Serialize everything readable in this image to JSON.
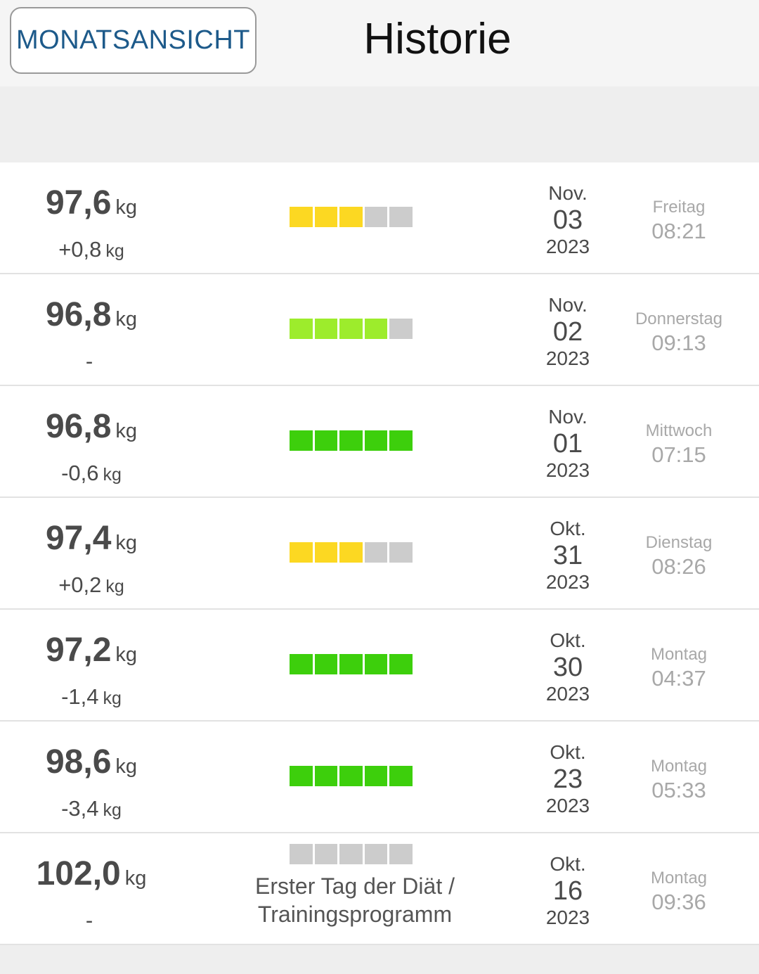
{
  "header": {
    "month_view_label": "MONATSANSICHT",
    "title": "Historie"
  },
  "colors": {
    "yellow": "#fcd822",
    "lime": "#9dec2c",
    "green": "#3dcf0c",
    "empty": "#cccccc",
    "button_text": "#1d5a8a"
  },
  "entries": [
    {
      "weight": "97,6",
      "weight_unit": "kg",
      "delta": "+0,8",
      "delta_unit": "kg",
      "bar_color": "yellow",
      "bar_filled": 3,
      "month": "Nov.",
      "day": "03",
      "year": "2023",
      "weekday": "Freitag",
      "time": "08:21"
    },
    {
      "weight": "96,8",
      "weight_unit": "kg",
      "delta": "-",
      "delta_unit": "",
      "bar_color": "lime",
      "bar_filled": 4,
      "month": "Nov.",
      "day": "02",
      "year": "2023",
      "weekday": "Donnerstag",
      "time": "09:13"
    },
    {
      "weight": "96,8",
      "weight_unit": "kg",
      "delta": "-0,6",
      "delta_unit": "kg",
      "bar_color": "green",
      "bar_filled": 5,
      "month": "Nov.",
      "day": "01",
      "year": "2023",
      "weekday": "Mittwoch",
      "time": "07:15"
    },
    {
      "weight": "97,4",
      "weight_unit": "kg",
      "delta": "+0,2",
      "delta_unit": "kg",
      "bar_color": "yellow",
      "bar_filled": 3,
      "month": "Okt.",
      "day": "31",
      "year": "2023",
      "weekday": "Dienstag",
      "time": "08:26"
    },
    {
      "weight": "97,2",
      "weight_unit": "kg",
      "delta": "-1,4",
      "delta_unit": "kg",
      "bar_color": "green",
      "bar_filled": 5,
      "month": "Okt.",
      "day": "30",
      "year": "2023",
      "weekday": "Montag",
      "time": "04:37"
    },
    {
      "weight": "98,6",
      "weight_unit": "kg",
      "delta": "-3,4",
      "delta_unit": "kg",
      "bar_color": "green",
      "bar_filled": 5,
      "month": "Okt.",
      "day": "23",
      "year": "2023",
      "weekday": "Montag",
      "time": "05:33"
    },
    {
      "weight": "102,0",
      "weight_unit": "kg",
      "delta": "-",
      "delta_unit": "",
      "bar_color": "empty",
      "bar_filled": 0,
      "caption_line1": "Erster Tag der Diät /",
      "caption_line2": "Trainingsprogramm",
      "month": "Okt.",
      "day": "16",
      "year": "2023",
      "weekday": "Montag",
      "time": "09:36"
    }
  ]
}
